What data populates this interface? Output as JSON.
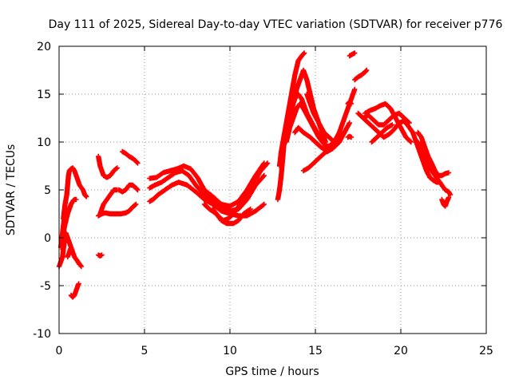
{
  "chart_data": {
    "type": "scatter",
    "title": "Day 111 of 2025, Sidereal Day-to-day VTEC variation (SDTVAR) for receiver p776",
    "xlabel": "GPS time / hours",
    "ylabel": "SDTVAR / TECUs",
    "xlim": [
      0,
      25
    ],
    "ylim": [
      -10,
      20
    ],
    "xticks": [
      "0",
      "5",
      "10",
      "15",
      "20",
      "25"
    ],
    "yticks": [
      "-10",
      "-5",
      "0",
      "5",
      "10",
      "15",
      "20"
    ],
    "grid": true,
    "marker": "plus",
    "color": "#ff0000",
    "tracks": [
      [
        [
          0.0,
          -3.0
        ],
        [
          0.2,
          -2.0
        ],
        [
          0.3,
          -0.5
        ],
        [
          0.4,
          0.5
        ],
        [
          0.5,
          0.0
        ],
        [
          0.7,
          -1.0
        ],
        [
          0.9,
          -2.0
        ],
        [
          1.1,
          -2.5
        ],
        [
          1.3,
          -3.0
        ]
      ],
      [
        [
          0.2,
          0.0
        ],
        [
          0.3,
          1.0
        ],
        [
          0.4,
          1.8
        ],
        [
          0.5,
          2.5
        ],
        [
          0.6,
          3.0
        ],
        [
          0.7,
          3.5
        ],
        [
          0.8,
          3.8
        ],
        [
          0.9,
          4.0
        ],
        [
          1.0,
          4.0
        ]
      ],
      [
        [
          0.25,
          2.0
        ],
        [
          0.35,
          3.5
        ],
        [
          0.45,
          4.5
        ],
        [
          0.5,
          5.5
        ],
        [
          0.55,
          6.5
        ],
        [
          0.6,
          7.0
        ],
        [
          0.7,
          7.2
        ],
        [
          0.8,
          7.3
        ],
        [
          0.9,
          7.0
        ],
        [
          1.0,
          6.5
        ],
        [
          1.1,
          6.0
        ],
        [
          1.2,
          5.5
        ],
        [
          1.4,
          5.0
        ],
        [
          1.5,
          4.5
        ],
        [
          1.6,
          4.3
        ]
      ],
      [
        [
          0.1,
          -1.0
        ],
        [
          0.2,
          0.5
        ],
        [
          0.3,
          2.0
        ],
        [
          0.4,
          2.8
        ]
      ],
      [
        [
          0.5,
          -2.0
        ],
        [
          0.6,
          -1.5
        ],
        [
          0.7,
          -1.0
        ],
        [
          0.8,
          -1.5
        ],
        [
          0.9,
          -2.0
        ],
        [
          1.1,
          -2.5
        ],
        [
          1.2,
          -2.8
        ]
      ],
      [
        [
          0.7,
          -6.0
        ],
        [
          0.8,
          -6.2
        ],
        [
          0.9,
          -6.0
        ],
        [
          1.0,
          -5.5
        ],
        [
          1.1,
          -5.0
        ],
        [
          1.15,
          -4.8
        ]
      ],
      [
        [
          2.3,
          -1.8
        ],
        [
          2.4,
          -1.9
        ],
        [
          2.5,
          -1.8
        ]
      ],
      [
        [
          2.3,
          8.5
        ],
        [
          2.4,
          7.5
        ],
        [
          2.5,
          7.0
        ],
        [
          2.6,
          6.5
        ],
        [
          2.8,
          6.3
        ],
        [
          3.0,
          6.5
        ],
        [
          3.2,
          7.0
        ],
        [
          3.4,
          7.3
        ]
      ],
      [
        [
          2.4,
          2.5
        ],
        [
          2.5,
          3.0
        ],
        [
          2.6,
          3.5
        ],
        [
          2.8,
          4.0
        ],
        [
          3.0,
          4.5
        ],
        [
          3.2,
          5.0
        ],
        [
          3.4,
          5.0
        ]
      ],
      [
        [
          2.3,
          2.3
        ],
        [
          2.5,
          2.5
        ],
        [
          2.7,
          2.6
        ],
        [
          3.0,
          2.5
        ],
        [
          3.3,
          2.5
        ],
        [
          3.6,
          2.5
        ],
        [
          3.9,
          2.6
        ],
        [
          4.1,
          2.8
        ],
        [
          4.3,
          3.2
        ],
        [
          4.5,
          3.5
        ]
      ],
      [
        [
          3.7,
          9.0
        ],
        [
          3.9,
          8.8
        ],
        [
          4.1,
          8.5
        ],
        [
          4.3,
          8.3
        ],
        [
          4.5,
          8.0
        ],
        [
          4.6,
          7.8
        ]
      ],
      [
        [
          3.5,
          5.0
        ],
        [
          3.7,
          4.8
        ],
        [
          3.9,
          5.0
        ],
        [
          4.1,
          5.5
        ],
        [
          4.3,
          5.5
        ],
        [
          4.5,
          5.2
        ],
        [
          4.6,
          5.0
        ]
      ],
      [
        [
          5.3,
          3.8
        ],
        [
          5.5,
          4.0
        ],
        [
          5.8,
          4.5
        ],
        [
          6.2,
          5.0
        ],
        [
          6.6,
          5.5
        ],
        [
          7.0,
          5.8
        ],
        [
          7.5,
          5.5
        ],
        [
          8.0,
          4.8
        ],
        [
          8.5,
          4.0
        ],
        [
          9.0,
          3.5
        ],
        [
          9.5,
          2.8
        ],
        [
          10.0,
          2.5
        ],
        [
          10.5,
          2.3
        ],
        [
          11.0,
          2.3
        ],
        [
          11.5,
          2.8
        ],
        [
          12.0,
          3.5
        ]
      ],
      [
        [
          5.3,
          5.2
        ],
        [
          5.6,
          5.5
        ],
        [
          6.0,
          5.8
        ],
        [
          6.4,
          6.3
        ],
        [
          6.8,
          6.8
        ],
        [
          7.2,
          7.0
        ],
        [
          7.6,
          6.5
        ],
        [
          8.0,
          5.5
        ],
        [
          8.5,
          4.5
        ],
        [
          9.0,
          3.8
        ],
        [
          9.5,
          3.0
        ],
        [
          10.0,
          2.8
        ],
        [
          10.5,
          3.0
        ],
        [
          11.0,
          4.0
        ],
        [
          11.5,
          5.5
        ],
        [
          12.0,
          6.5
        ]
      ],
      [
        [
          5.3,
          6.2
        ],
        [
          5.7,
          6.3
        ],
        [
          6.1,
          6.8
        ],
        [
          6.5,
          7.0
        ],
        [
          6.9,
          7.2
        ],
        [
          7.3,
          7.5
        ],
        [
          7.7,
          7.2
        ],
        [
          8.1,
          6.3
        ],
        [
          8.5,
          5.0
        ],
        [
          9.0,
          4.3
        ],
        [
          9.5,
          3.5
        ],
        [
          10.0,
          3.3
        ],
        [
          10.5,
          3.8
        ],
        [
          11.0,
          5.0
        ],
        [
          11.5,
          6.5
        ],
        [
          12.0,
          7.8
        ]
      ],
      [
        [
          8.5,
          3.5
        ],
        [
          8.8,
          3.0
        ],
        [
          9.2,
          2.5
        ],
        [
          9.5,
          1.8
        ],
        [
          9.8,
          1.5
        ],
        [
          10.2,
          1.5
        ],
        [
          10.5,
          1.8
        ],
        [
          10.8,
          2.5
        ],
        [
          11.2,
          3.0
        ]
      ],
      [
        [
          9.0,
          3.0
        ],
        [
          9.3,
          2.3
        ],
        [
          9.6,
          1.8
        ],
        [
          9.9,
          2.0
        ],
        [
          10.2,
          2.5
        ],
        [
          10.6,
          3.5
        ],
        [
          11.0,
          4.5
        ],
        [
          11.4,
          5.8
        ],
        [
          11.8,
          7.0
        ],
        [
          12.2,
          7.8
        ]
      ],
      [
        [
          12.8,
          4.0
        ],
        [
          12.9,
          5.0
        ],
        [
          13.0,
          6.5
        ],
        [
          13.1,
          8.5
        ],
        [
          13.2,
          10.5
        ],
        [
          13.3,
          12.0
        ],
        [
          13.4,
          13.0
        ],
        [
          13.5,
          14.0
        ]
      ],
      [
        [
          12.9,
          7.5
        ],
        [
          13.0,
          9.0
        ],
        [
          13.2,
          10.5
        ],
        [
          13.4,
          12.0
        ],
        [
          13.6,
          13.5
        ],
        [
          13.8,
          14.5
        ],
        [
          14.0,
          15.0
        ],
        [
          14.2,
          14.5
        ],
        [
          14.5,
          13.0
        ],
        [
          14.8,
          12.0
        ],
        [
          15.1,
          11.0
        ],
        [
          15.4,
          10.0
        ],
        [
          15.7,
          9.5
        ],
        [
          16.0,
          9.8
        ],
        [
          16.3,
          10.5
        ]
      ],
      [
        [
          13.0,
          9.0
        ],
        [
          13.2,
          11.0
        ],
        [
          13.4,
          13.0
        ],
        [
          13.6,
          15.0
        ],
        [
          13.8,
          17.0
        ],
        [
          14.0,
          18.5
        ],
        [
          14.2,
          19.0
        ],
        [
          14.35,
          19.3
        ]
      ],
      [
        [
          13.3,
          10.0
        ],
        [
          13.5,
          11.5
        ],
        [
          13.7,
          12.5
        ],
        [
          13.9,
          13.5
        ],
        [
          14.1,
          14.0
        ],
        [
          14.3,
          13.5
        ],
        [
          14.6,
          12.5
        ],
        [
          14.9,
          11.5
        ],
        [
          15.2,
          10.5
        ],
        [
          15.5,
          9.8
        ],
        [
          15.8,
          9.5
        ],
        [
          16.1,
          10.0
        ],
        [
          16.4,
          11.0
        ],
        [
          16.7,
          12.5
        ],
        [
          17.0,
          14.0
        ],
        [
          17.3,
          15.5
        ]
      ],
      [
        [
          13.5,
          12.0
        ],
        [
          13.7,
          14.0
        ],
        [
          13.9,
          15.5
        ],
        [
          14.1,
          16.5
        ],
        [
          14.3,
          17.5
        ],
        [
          14.5,
          16.5
        ],
        [
          14.7,
          15.0
        ],
        [
          14.9,
          13.5
        ],
        [
          15.2,
          12.0
        ],
        [
          15.5,
          11.0
        ],
        [
          15.8,
          10.5
        ],
        [
          16.1,
          10.0
        ]
      ],
      [
        [
          13.8,
          11.0
        ],
        [
          14.0,
          11.5
        ],
        [
          14.3,
          11.0
        ],
        [
          14.7,
          10.5
        ],
        [
          15.0,
          10.0
        ],
        [
          15.3,
          9.5
        ],
        [
          15.7,
          9.0
        ],
        [
          16.0,
          9.3
        ],
        [
          16.4,
          10.0
        ],
        [
          16.7,
          11.0
        ],
        [
          17.0,
          12.0
        ]
      ],
      [
        [
          14.3,
          7.0
        ],
        [
          14.6,
          7.3
        ],
        [
          14.9,
          7.8
        ],
        [
          15.2,
          8.3
        ],
        [
          15.5,
          8.8
        ],
        [
          15.8,
          9.2
        ],
        [
          16.1,
          9.8
        ],
        [
          16.4,
          10.5
        ],
        [
          16.7,
          11.0
        ]
      ],
      [
        [
          14.5,
          15.0
        ],
        [
          14.7,
          14.0
        ],
        [
          14.9,
          13.0
        ],
        [
          15.2,
          12.0
        ],
        [
          15.4,
          11.0
        ],
        [
          15.6,
          10.0
        ]
      ],
      [
        [
          16.9,
          10.5
        ],
        [
          17.0,
          10.6
        ],
        [
          17.1,
          10.5
        ]
      ],
      [
        [
          16.9,
          14.0
        ],
        [
          17.0,
          14.2
        ],
        [
          17.1,
          14.0
        ]
      ],
      [
        [
          17.0,
          19.0
        ],
        [
          17.1,
          19.1
        ],
        [
          17.2,
          19.2
        ],
        [
          17.3,
          19.3
        ]
      ],
      [
        [
          17.3,
          16.5
        ],
        [
          17.5,
          16.8
        ],
        [
          17.7,
          17.0
        ],
        [
          17.9,
          17.3
        ],
        [
          18.0,
          17.5
        ]
      ],
      [
        [
          17.5,
          13.0
        ],
        [
          17.8,
          12.5
        ],
        [
          18.1,
          12.0
        ],
        [
          18.4,
          11.5
        ],
        [
          18.7,
          11.0
        ],
        [
          19.0,
          10.5
        ],
        [
          19.3,
          10.8
        ],
        [
          19.6,
          11.3
        ],
        [
          19.9,
          12.0
        ],
        [
          20.2,
          12.2
        ],
        [
          20.5,
          11.5
        ]
      ],
      [
        [
          17.8,
          12.5
        ],
        [
          18.1,
          12.8
        ],
        [
          18.4,
          12.3
        ],
        [
          18.7,
          11.8
        ],
        [
          19.0,
          11.8
        ],
        [
          19.3,
          12.3
        ],
        [
          19.6,
          12.8
        ],
        [
          19.9,
          13.0
        ],
        [
          20.2,
          12.5
        ],
        [
          20.5,
          12.0
        ]
      ],
      [
        [
          17.9,
          13.0
        ],
        [
          18.2,
          13.3
        ],
        [
          18.5,
          13.5
        ],
        [
          18.8,
          13.8
        ],
        [
          19.1,
          14.0
        ],
        [
          19.4,
          13.5
        ],
        [
          19.7,
          12.5
        ],
        [
          20.0,
          11.5
        ],
        [
          20.3,
          10.5
        ],
        [
          20.6,
          10.0
        ]
      ],
      [
        [
          18.3,
          10.0
        ],
        [
          18.6,
          10.5
        ],
        [
          18.9,
          11.0
        ],
        [
          19.2,
          11.5
        ],
        [
          19.5,
          11.8
        ]
      ],
      [
        [
          20.3,
          12.0
        ],
        [
          20.5,
          11.5
        ],
        [
          20.7,
          11.0
        ],
        [
          20.9,
          10.0
        ],
        [
          21.1,
          9.0
        ],
        [
          21.3,
          8.0
        ],
        [
          21.5,
          7.0
        ],
        [
          21.7,
          6.3
        ],
        [
          21.9,
          6.0
        ],
        [
          22.1,
          5.8
        ],
        [
          22.3,
          5.8
        ]
      ],
      [
        [
          21.0,
          10.0
        ],
        [
          21.2,
          9.5
        ],
        [
          21.4,
          8.5
        ],
        [
          21.6,
          7.5
        ],
        [
          21.8,
          7.0
        ],
        [
          22.0,
          6.5
        ],
        [
          22.2,
          6.0
        ],
        [
          22.4,
          5.5
        ],
        [
          22.6,
          5.0
        ],
        [
          22.8,
          4.8
        ],
        [
          22.9,
          4.5
        ]
      ],
      [
        [
          21.0,
          11.0
        ],
        [
          21.2,
          10.5
        ],
        [
          21.4,
          9.5
        ],
        [
          21.6,
          8.5
        ],
        [
          21.8,
          7.8
        ],
        [
          22.0,
          7.0
        ],
        [
          22.2,
          6.5
        ],
        [
          22.4,
          6.5
        ],
        [
          22.6,
          6.7
        ],
        [
          22.8,
          6.8
        ]
      ],
      [
        [
          22.4,
          4.0
        ],
        [
          22.5,
          3.5
        ],
        [
          22.6,
          3.3
        ],
        [
          22.7,
          3.8
        ],
        [
          22.8,
          4.2
        ]
      ]
    ]
  }
}
